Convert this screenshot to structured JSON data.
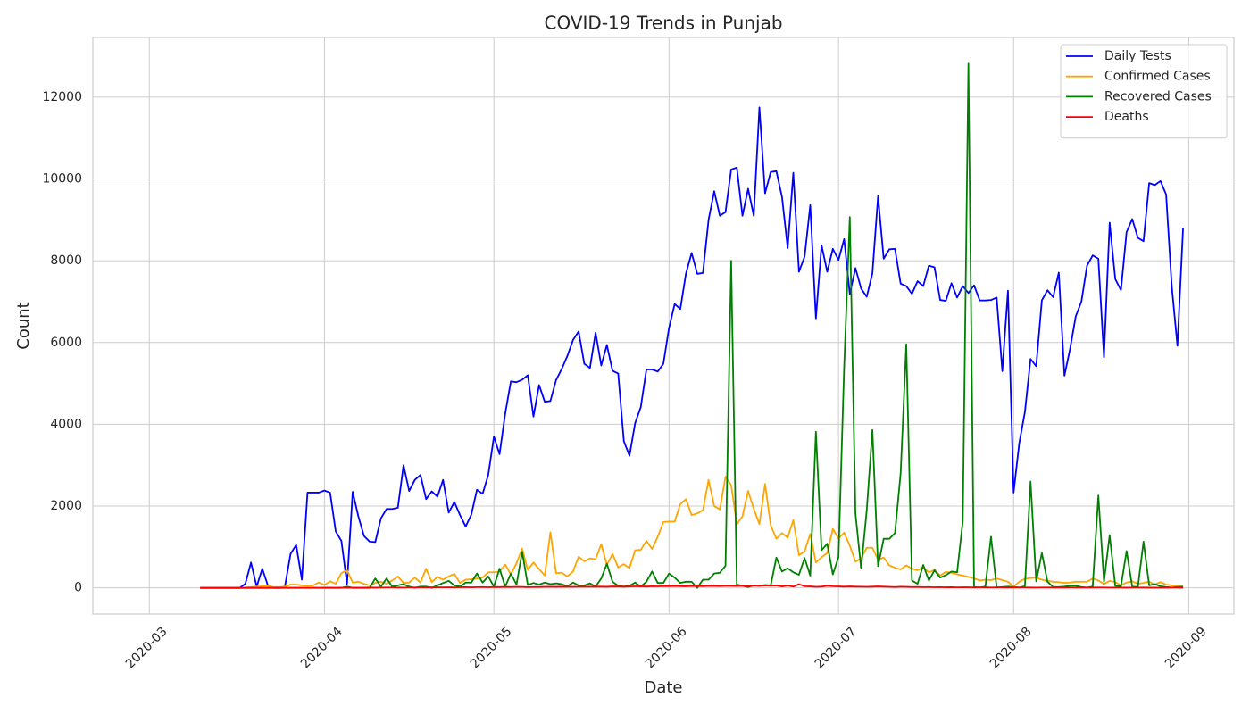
{
  "chart_data": {
    "type": "line",
    "title": "COVID-19 Trends in Punjab",
    "x_label": "Date",
    "y_label": "Count",
    "x": [
      "2020-03-10",
      "2020-03-11",
      "2020-03-12",
      "2020-03-13",
      "2020-03-14",
      "2020-03-15",
      "2020-03-16",
      "2020-03-17",
      "2020-03-18",
      "2020-03-19",
      "2020-03-20",
      "2020-03-21",
      "2020-03-22",
      "2020-03-23",
      "2020-03-24",
      "2020-03-25",
      "2020-03-26",
      "2020-03-27",
      "2020-03-28",
      "2020-03-29",
      "2020-03-30",
      "2020-03-31",
      "2020-04-01",
      "2020-04-02",
      "2020-04-03",
      "2020-04-04",
      "2020-04-05",
      "2020-04-06",
      "2020-04-07",
      "2020-04-08",
      "2020-04-09",
      "2020-04-10",
      "2020-04-11",
      "2020-04-12",
      "2020-04-13",
      "2020-04-14",
      "2020-04-15",
      "2020-04-16",
      "2020-04-17",
      "2020-04-18",
      "2020-04-19",
      "2020-04-20",
      "2020-04-21",
      "2020-04-22",
      "2020-04-23",
      "2020-04-24",
      "2020-04-25",
      "2020-04-26",
      "2020-04-27",
      "2020-04-28",
      "2020-04-29",
      "2020-04-30",
      "2020-05-01",
      "2020-05-02",
      "2020-05-03",
      "2020-05-04",
      "2020-05-05",
      "2020-05-06",
      "2020-05-07",
      "2020-05-08",
      "2020-05-09",
      "2020-05-10",
      "2020-05-11",
      "2020-05-12",
      "2020-05-13",
      "2020-05-14",
      "2020-05-15",
      "2020-05-16",
      "2020-05-17",
      "2020-05-18",
      "2020-05-19",
      "2020-05-20",
      "2020-05-21",
      "2020-05-22",
      "2020-05-23",
      "2020-05-24",
      "2020-05-25",
      "2020-05-26",
      "2020-05-27",
      "2020-05-28",
      "2020-05-29",
      "2020-05-30",
      "2020-05-31",
      "2020-06-01",
      "2020-06-02",
      "2020-06-03",
      "2020-06-04",
      "2020-06-05",
      "2020-06-06",
      "2020-06-07",
      "2020-06-08",
      "2020-06-09",
      "2020-06-10",
      "2020-06-11",
      "2020-06-12",
      "2020-06-13",
      "2020-06-14",
      "2020-06-15",
      "2020-06-16",
      "2020-06-17",
      "2020-06-18",
      "2020-06-19",
      "2020-06-20",
      "2020-06-21",
      "2020-06-22",
      "2020-06-23",
      "2020-06-24",
      "2020-06-25",
      "2020-06-26",
      "2020-06-27",
      "2020-06-28",
      "2020-06-29",
      "2020-06-30",
      "2020-07-01",
      "2020-07-02",
      "2020-07-03",
      "2020-07-04",
      "2020-07-05",
      "2020-07-06",
      "2020-07-07",
      "2020-07-08",
      "2020-07-09",
      "2020-07-10",
      "2020-07-11",
      "2020-07-12",
      "2020-07-13",
      "2020-07-14",
      "2020-07-15",
      "2020-07-16",
      "2020-07-17",
      "2020-07-18",
      "2020-07-19",
      "2020-07-20",
      "2020-07-21",
      "2020-07-22",
      "2020-07-23",
      "2020-07-24",
      "2020-07-25",
      "2020-07-26",
      "2020-07-27",
      "2020-07-28",
      "2020-07-29",
      "2020-07-30",
      "2020-07-31",
      "2020-08-01",
      "2020-08-02",
      "2020-08-03",
      "2020-08-04",
      "2020-08-05",
      "2020-08-06",
      "2020-08-07",
      "2020-08-08",
      "2020-08-09",
      "2020-08-10",
      "2020-08-11",
      "2020-08-12",
      "2020-08-13",
      "2020-08-14",
      "2020-08-15",
      "2020-08-16",
      "2020-08-17",
      "2020-08-18",
      "2020-08-19",
      "2020-08-20",
      "2020-08-21",
      "2020-08-22",
      "2020-08-23",
      "2020-08-24",
      "2020-08-25",
      "2020-08-26",
      "2020-08-27",
      "2020-08-28",
      "2020-08-29",
      "2020-08-30",
      "2020-08-31"
    ],
    "series": [
      {
        "name": "Daily Tests",
        "color": "#0000ff",
        "values": [
          0,
          0,
          0,
          0,
          0,
          0,
          0,
          0,
          100,
          620,
          30,
          470,
          50,
          0,
          0,
          30,
          830,
          1050,
          200,
          2330,
          2330,
          2330,
          2380,
          2330,
          1380,
          1150,
          100,
          2350,
          1750,
          1270,
          1130,
          1120,
          1700,
          1930,
          1930,
          1960,
          3000,
          2370,
          2640,
          2760,
          2170,
          2360,
          2230,
          2640,
          1840,
          2100,
          1780,
          1500,
          1790,
          2400,
          2300,
          2760,
          3700,
          3270,
          4260,
          5050,
          5030,
          5090,
          5200,
          4190,
          4960,
          4550,
          4570,
          5080,
          5350,
          5670,
          6060,
          6270,
          5480,
          5380,
          6240,
          5440,
          5940,
          5310,
          5240,
          3590,
          3230,
          4030,
          4420,
          5340,
          5340,
          5290,
          5480,
          6360,
          6940,
          6820,
          7690,
          8190,
          7680,
          7700,
          9000,
          9700,
          9100,
          9190,
          10230,
          10280,
          9100,
          9760,
          9100,
          11750,
          9650,
          10170,
          10190,
          9560,
          8310,
          10150,
          7730,
          8100,
          9360,
          6590,
          8380,
          7730,
          8290,
          8020,
          8530,
          7190,
          7820,
          7320,
          7120,
          7690,
          9580,
          8050,
          8280,
          8290,
          7440,
          7380,
          7190,
          7500,
          7380,
          7880,
          7840,
          7040,
          7020,
          7450,
          7100,
          7380,
          7210,
          7400,
          7030,
          7030,
          7040,
          7100,
          5300,
          7270,
          2330,
          3540,
          4300,
          5600,
          5420,
          7030,
          7280,
          7110,
          7710,
          5190,
          5850,
          6640,
          7000,
          7880,
          8130,
          8050,
          5640,
          8930,
          7550,
          7280,
          8700,
          9020,
          8560,
          8480,
          9900,
          9850,
          9950,
          9620,
          7370,
          5920,
          8800
        ]
      },
      {
        "name": "Confirmed Cases",
        "color": "#ffa500",
        "values": [
          0,
          0,
          0,
          0,
          0,
          0,
          0,
          0,
          10,
          20,
          30,
          40,
          50,
          20,
          20,
          30,
          80,
          80,
          60,
          50,
          60,
          130,
          70,
          160,
          100,
          360,
          430,
          130,
          150,
          100,
          60,
          120,
          150,
          100,
          180,
          280,
          120,
          130,
          250,
          130,
          470,
          140,
          270,
          200,
          280,
          340,
          120,
          200,
          210,
          230,
          250,
          380,
          380,
          400,
          570,
          330,
          600,
          960,
          440,
          620,
          460,
          300,
          1360,
          360,
          370,
          280,
          400,
          760,
          650,
          720,
          700,
          1070,
          560,
          830,
          500,
          580,
          480,
          920,
          930,
          1150,
          950,
          1250,
          1610,
          1620,
          1620,
          2050,
          2170,
          1780,
          1820,
          1900,
          2640,
          2000,
          1920,
          2720,
          2510,
          1560,
          1750,
          2370,
          1930,
          1560,
          2540,
          1530,
          1200,
          1340,
          1230,
          1660,
          800,
          890,
          1320,
          620,
          750,
          850,
          1440,
          1210,
          1350,
          1030,
          640,
          720,
          980,
          980,
          690,
          740,
          550,
          490,
          450,
          550,
          470,
          430,
          500,
          380,
          440,
          300,
          390,
          370,
          330,
          300,
          270,
          230,
          180,
          200,
          190,
          230,
          190,
          150,
          30,
          150,
          220,
          240,
          250,
          200,
          170,
          150,
          140,
          120,
          130,
          150,
          150,
          150,
          230,
          180,
          90,
          170,
          140,
          60,
          130,
          160,
          100,
          120,
          150,
          80,
          140,
          80,
          60,
          40,
          30
        ]
      },
      {
        "name": "Recovered Cases",
        "color": "#008000",
        "values": [
          0,
          0,
          0,
          0,
          0,
          0,
          0,
          0,
          0,
          0,
          0,
          0,
          0,
          0,
          0,
          0,
          0,
          0,
          0,
          0,
          0,
          0,
          0,
          0,
          0,
          0,
          30,
          0,
          0,
          0,
          0,
          230,
          30,
          230,
          30,
          60,
          90,
          30,
          0,
          30,
          30,
          0,
          60,
          120,
          170,
          60,
          30,
          130,
          130,
          350,
          130,
          280,
          30,
          470,
          30,
          350,
          80,
          880,
          70,
          120,
          80,
          130,
          90,
          110,
          90,
          40,
          130,
          60,
          60,
          110,
          30,
          230,
          590,
          150,
          50,
          30,
          50,
          130,
          30,
          150,
          400,
          120,
          120,
          350,
          250,
          120,
          150,
          150,
          0,
          200,
          200,
          350,
          370,
          540,
          8000,
          80,
          50,
          20,
          60,
          50,
          70,
          60,
          740,
          400,
          480,
          380,
          320,
          730,
          300,
          3820,
          920,
          1080,
          330,
          750,
          5400,
          9070,
          1820,
          470,
          1900,
          3860,
          530,
          1200,
          1200,
          1340,
          2800,
          5960,
          180,
          100,
          560,
          180,
          430,
          250,
          310,
          400,
          380,
          1620,
          12820,
          20,
          10,
          30,
          1250,
          10,
          20,
          30,
          20,
          10,
          40,
          2600,
          160,
          850,
          150,
          20,
          20,
          30,
          50,
          50,
          20,
          10,
          30,
          2260,
          150,
          1290,
          50,
          40,
          900,
          30,
          20,
          1130,
          60,
          90,
          40,
          20,
          10,
          20,
          30
        ]
      },
      {
        "name": "Deaths",
        "color": "#ff0000",
        "values": [
          0,
          0,
          0,
          0,
          0,
          0,
          0,
          0,
          0,
          0,
          0,
          0,
          0,
          1,
          0,
          2,
          1,
          3,
          1,
          2,
          3,
          2,
          4,
          5,
          2,
          6,
          3,
          5,
          4,
          7,
          8,
          5,
          6,
          9,
          10,
          8,
          7,
          11,
          9,
          12,
          10,
          13,
          14,
          12,
          15,
          11,
          16,
          18,
          14,
          17,
          20,
          15,
          22,
          19,
          24,
          21,
          26,
          23,
          18,
          20,
          22,
          25,
          28,
          24,
          30,
          27,
          26,
          29,
          31,
          28,
          33,
          30,
          27,
          35,
          32,
          30,
          34,
          36,
          38,
          33,
          40,
          37,
          42,
          39,
          44,
          41,
          38,
          46,
          43,
          40,
          48,
          45,
          42,
          50,
          47,
          44,
          52,
          49,
          55,
          51,
          58,
          54,
          60,
          35,
          55,
          30,
          90,
          40,
          35,
          25,
          30,
          50,
          40,
          35,
          30,
          35,
          30,
          28,
          25,
          30,
          35,
          30,
          25,
          20,
          28,
          25,
          20,
          22,
          18,
          20,
          15,
          18,
          14,
          16,
          12,
          15,
          13,
          10,
          12,
          11,
          10,
          12,
          9,
          8,
          10,
          11,
          9,
          8,
          7,
          9,
          10,
          8,
          6,
          7,
          9,
          8,
          7,
          6,
          8,
          10,
          9,
          7,
          8,
          6,
          5,
          7,
          6,
          8,
          5,
          6,
          4,
          5,
          7,
          6,
          5
        ]
      }
    ],
    "xlim": [
      "2020-02-20",
      "2020-09-09"
    ],
    "xticks": [
      {
        "value": "2020-03-01",
        "label": "2020-03"
      },
      {
        "value": "2020-04-01",
        "label": "2020-04"
      },
      {
        "value": "2020-05-01",
        "label": "2020-05"
      },
      {
        "value": "2020-06-01",
        "label": "2020-06"
      },
      {
        "value": "2020-07-01",
        "label": "2020-07"
      },
      {
        "value": "2020-08-01",
        "label": "2020-08"
      },
      {
        "value": "2020-09-01",
        "label": "2020-09"
      }
    ],
    "ylim": [
      -640,
      13460
    ],
    "yticks": [
      0,
      2000,
      4000,
      6000,
      8000,
      10000,
      12000
    ],
    "grid": true,
    "legend": "upper right"
  }
}
